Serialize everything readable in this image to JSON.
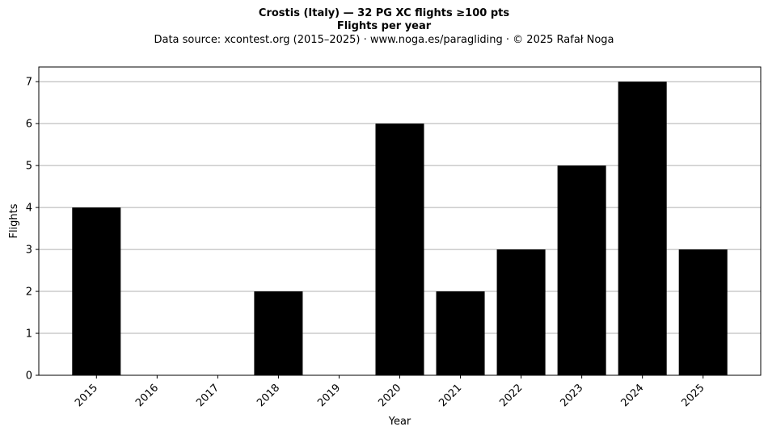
{
  "chart_data": {
    "type": "bar",
    "title": "Crostis (Italy)  —  32 PG XC flights ≥100 pts",
    "subtitle": "Flights per year",
    "source_note": "Data source: xcontest.org (2015–2025)  ·  www.noga.es/paragliding  ·  © 2025 Rafał Noga",
    "xlabel": "Year",
    "ylabel": "Flights",
    "categories": [
      "2015",
      "2016",
      "2017",
      "2018",
      "2019",
      "2020",
      "2021",
      "2022",
      "2023",
      "2024",
      "2025"
    ],
    "values": [
      4,
      0,
      0,
      2,
      0,
      6,
      2,
      3,
      5,
      7,
      3
    ],
    "ylim": [
      0,
      7.35
    ],
    "yticks": [
      0,
      1,
      2,
      3,
      4,
      5,
      6,
      7
    ],
    "grid": "y",
    "bar_color": "#000000",
    "grid_color": "#b0b0b0"
  }
}
